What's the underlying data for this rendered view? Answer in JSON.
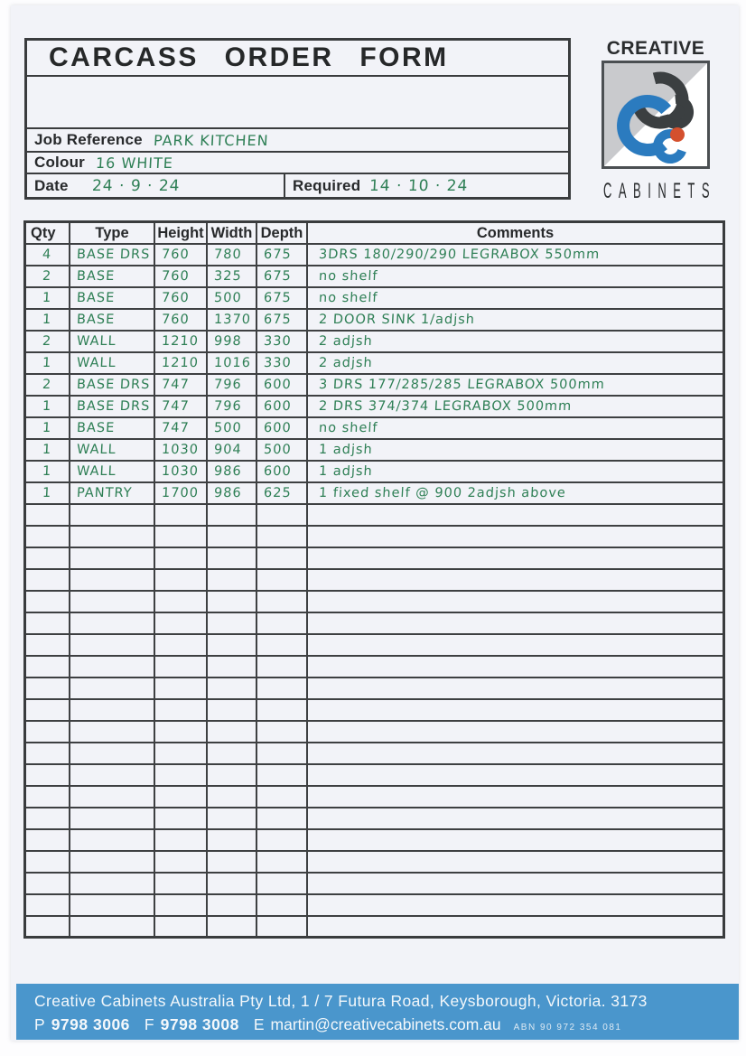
{
  "form": {
    "title": "CARCASS  ORDER  FORM",
    "job_reference_label": "Job Reference",
    "job_reference_value": "PARK  KITCHEN",
    "colour_label": "Colour",
    "colour_value": "16  WHITE",
    "date_label": "Date",
    "date_value": "24 · 9 · 24",
    "required_label": "Required",
    "required_value": "14 · 10 · 24"
  },
  "logo": {
    "top_text": "CREATIVE",
    "bottom_text": "CABINETS",
    "colors": {
      "blue": "#2b7bbf",
      "dark": "#3b3f41",
      "red": "#d4502e",
      "gray": "#c9cacd"
    }
  },
  "table": {
    "headers": [
      "Qty",
      "Type",
      "Height",
      "Width",
      "Depth",
      "Comments"
    ],
    "rows": [
      {
        "qty": "4",
        "type": "BASE DRS",
        "height": "760",
        "width": "780",
        "depth": "675",
        "comments": "3DRS  180/290/290  LEGRABOX  550mm"
      },
      {
        "qty": "2",
        "type": "BASE",
        "height": "760",
        "width": "325",
        "depth": "675",
        "comments": "no shelf"
      },
      {
        "qty": "1",
        "type": "BASE",
        "height": "760",
        "width": "500",
        "depth": "675",
        "comments": "no shelf"
      },
      {
        "qty": "1",
        "type": "BASE",
        "height": "760",
        "width": "1370",
        "depth": "675",
        "comments": "2 DOOR SINK    1/adjsh"
      },
      {
        "qty": "2",
        "type": "WALL",
        "height": "1210",
        "width": "998",
        "depth": "330",
        "comments": "2 adjsh"
      },
      {
        "qty": "1",
        "type": "WALL",
        "height": "1210",
        "width": "1016",
        "depth": "330",
        "comments": "2 adjsh"
      },
      {
        "qty": "2",
        "type": "BASE DRS",
        "height": "747",
        "width": "796",
        "depth": "600",
        "comments": "3 DRS  177/285/285  LEGRABOX  500mm"
      },
      {
        "qty": "1",
        "type": "BASE DRS",
        "height": "747",
        "width": "796",
        "depth": "600",
        "comments": "2 DRS  374/374    LEGRABOX  500mm"
      },
      {
        "qty": "1",
        "type": "BASE",
        "height": "747",
        "width": "500",
        "depth": "600",
        "comments": "no shelf"
      },
      {
        "qty": "1",
        "type": "WALL",
        "height": "1030",
        "width": "904",
        "depth": "500",
        "comments": "1 adjsh"
      },
      {
        "qty": "1",
        "type": "WALL",
        "height": "1030",
        "width": "986",
        "depth": "600",
        "comments": "1 adjsh"
      },
      {
        "qty": "1",
        "type": "PANTRY",
        "height": "1700",
        "width": "986",
        "depth": "625",
        "comments": "1 fixed shelf @ 900   2adjsh above"
      }
    ],
    "empty_row_count": 20
  },
  "footer": {
    "address": "Creative Cabinets Australia Pty Ltd, 1 / 7 Futura Road, Keysborough, Victoria. 3173",
    "phone_label": "P",
    "phone": "9798 3006",
    "fax_label": "F",
    "fax": "9798 3008",
    "email_label": "E",
    "email": "martin@creativecabinets.com.au",
    "abn": "ABN 90 972 354 081",
    "bar_color": "#4a96cc"
  }
}
